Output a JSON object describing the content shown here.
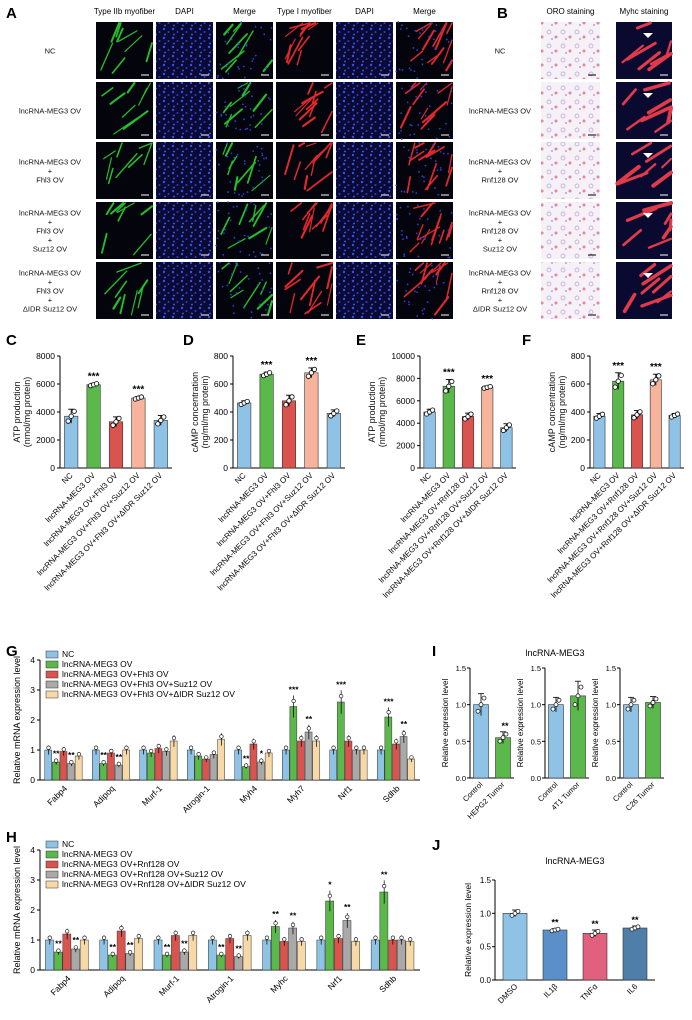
{
  "colors": {
    "nc": "#8fc3e6",
    "meg3": "#5bb84a",
    "fhl3": "#d9534f",
    "suz12": "#f7b39b",
    "didr": "#f7d9a8",
    "rnf_grey": "#a9a9a9",
    "il1b": "#5b8fc9",
    "tnfa": "#e0607e",
    "il6": "#4f7fa8",
    "green_stain": "#22c02a",
    "red_stain": "#e0282d",
    "dapi": "#1f2fb0"
  },
  "panel_letters": [
    "A",
    "B",
    "C",
    "D",
    "E",
    "F",
    "G",
    "H",
    "I",
    "J"
  ],
  "panel_a": {
    "columns": [
      "Type IIb myofiber",
      "DAPI",
      "Merge",
      "Type I myofiber",
      "DAPI",
      "Merge"
    ],
    "rows": [
      "NC",
      "lncRNA-MEG3 OV",
      "lncRNA-MEG3 OV\n+\nFhl3 OV",
      "lncRNA-MEG3 OV\n+\nFhl3 OV\n+\nSuz12 OV",
      "lncRNA-MEG3 OV\n+\nFhl3 OV\n+\nΔIDR Suz12 OV"
    ]
  },
  "panel_b": {
    "columns": [
      "ORO staining",
      "Myhc staining"
    ],
    "rows": [
      "NC",
      "lncRNA-MEG3 OV",
      "lncRNA-MEG3 OV\n+\nRnf128 OV",
      "lncRNA-MEG3 OV\n+\nRnf128 OV\n+\nSuz12 OV",
      "lncRNA-MEG3 OV\n+\nRnf128 OV\n+\nΔIDR Suz12 OV"
    ]
  },
  "chart_data": [
    {
      "panel": "C",
      "type": "bar",
      "ylabel": "ATP production\n(nmol/mg protein)",
      "ylim": [
        0,
        8000
      ],
      "yticks": [
        "0",
        "2000",
        "4000",
        "6000",
        "8000"
      ],
      "categories": [
        "NC",
        "lncRNA-MEG3 OV",
        "lncRNA-MEG3 OV+Fhl3 OV",
        "lncRNA-MEG3 OV+Fhl3 OV+Suz12 OV",
        "lncRNA-MEG3 OV+Fhl3 OV+ΔIDR Suz12 OV"
      ],
      "values": [
        3700,
        5950,
        3300,
        5000,
        3400
      ],
      "errors": [
        500,
        100,
        350,
        100,
        350
      ],
      "sig": [
        "",
        "***",
        "",
        "***",
        ""
      ]
    },
    {
      "panel": "D",
      "type": "bar",
      "ylabel": "cAMP concentration\n(ng/ml/mg protein)",
      "ylim": [
        0,
        800
      ],
      "yticks": [
        "0",
        "200",
        "400",
        "600",
        "800"
      ],
      "categories": [
        "NC",
        "lncRNA-MEG3 OV",
        "lncRNA-MEG3 OV+Fhl3 OV",
        "lncRNA-MEG3 OV+Fhl3 OV+Suz12 OV",
        "lncRNA-MEG3 OV+Fhl3 OV+ΔIDR Suz12 OV"
      ],
      "values": [
        465,
        670,
        480,
        680,
        390
      ],
      "errors": [
        15,
        15,
        40,
        35,
        25
      ],
      "sig": [
        "",
        "***",
        "",
        "***",
        ""
      ]
    },
    {
      "panel": "E",
      "type": "bar",
      "ylabel": "ATP production\n(nmol/mg protein)",
      "ylim": [
        0,
        10000
      ],
      "yticks": [
        "0",
        "2000",
        "4000",
        "6000",
        "8000",
        "10000"
      ],
      "categories": [
        "NC",
        "lncRNA-MEG3 OV",
        "lncRNA-MEG3 OV+Rnf128 OV",
        "lncRNA-MEG3 OV+Rnf128 OV+Suz12 OV",
        "lncRNA-MEG3 OV+Rnf128 OV+ΔIDR Suz12 OV"
      ],
      "values": [
        5000,
        7300,
        4600,
        7200,
        3600
      ],
      "errors": [
        250,
        600,
        300,
        100,
        350
      ],
      "sig": [
        "",
        "***",
        "",
        "***",
        ""
      ]
    },
    {
      "panel": "F",
      "type": "bar",
      "ylabel": "cAMP concentration\n(ng/ml/mg protein)",
      "ylim": [
        0,
        800
      ],
      "yticks": [
        "0",
        "200",
        "400",
        "600",
        "800"
      ],
      "categories": [
        "NC",
        "lncRNA-MEG3 OV",
        "lncRNA-MEG3 OV+Rnf128 OV",
        "lncRNA-MEG3 OV+Rnf128 OV+Suz12 OV",
        "lncRNA-MEG3 OV+Rnf128 OV+ΔIDR Suz12 OV"
      ],
      "values": [
        370,
        620,
        380,
        630,
        375
      ],
      "errors": [
        20,
        60,
        30,
        40,
        15
      ],
      "sig": [
        "",
        "***",
        "",
        "***",
        ""
      ]
    },
    {
      "panel": "G",
      "type": "bar",
      "ylabel": "Relative mRNA expression level",
      "ylim": [
        0,
        4
      ],
      "yticks": [
        "0",
        "1",
        "2",
        "3",
        "4"
      ],
      "categories": [
        "Fabp4",
        "Adipoq",
        "Murf-1",
        "Atrogin-1",
        "Myh4",
        "Myh7",
        "Nrf1",
        "Sdhb"
      ],
      "series": [
        {
          "name": "NC",
          "values": [
            1.0,
            1.0,
            1.0,
            1.0,
            1.0,
            1.0,
            1.0,
            1.0
          ]
        },
        {
          "name": "lncRNA-MEG3 OV",
          "values": [
            0.6,
            0.55,
            0.9,
            0.8,
            0.45,
            2.45,
            2.6,
            2.1
          ]
        },
        {
          "name": "lncRNA-MEG3 OV+Fhl3 OV",
          "values": [
            0.95,
            0.9,
            1.05,
            0.7,
            1.2,
            1.3,
            1.3,
            1.2
          ]
        },
        {
          "name": "lncRNA-MEG3 OV+Fhl3 OV+Suz12 OV",
          "values": [
            0.55,
            0.5,
            0.95,
            0.85,
            0.6,
            1.6,
            1.0,
            1.45
          ]
        },
        {
          "name": "lncRNA-MEG3 OV+Fhl3 OV+ΔIDR Suz12 OV",
          "values": [
            0.8,
            1.0,
            1.3,
            1.35,
            0.9,
            1.3,
            1.0,
            0.7
          ]
        }
      ],
      "sig_labels": [
        {
          "cat": 0,
          "ser": 1,
          "text": "**"
        },
        {
          "cat": 0,
          "ser": 3,
          "text": "**"
        },
        {
          "cat": 1,
          "ser": 1,
          "text": "**"
        },
        {
          "cat": 1,
          "ser": 3,
          "text": "**"
        },
        {
          "cat": 4,
          "ser": 1,
          "text": "**"
        },
        {
          "cat": 4,
          "ser": 3,
          "text": "*"
        },
        {
          "cat": 5,
          "ser": 1,
          "text": "***"
        },
        {
          "cat": 5,
          "ser": 3,
          "text": "**"
        },
        {
          "cat": 6,
          "ser": 1,
          "text": "***"
        },
        {
          "cat": 7,
          "ser": 1,
          "text": "***"
        },
        {
          "cat": 7,
          "ser": 3,
          "text": "**"
        }
      ]
    },
    {
      "panel": "H",
      "type": "bar",
      "ylabel": "Relative mRNA expression level",
      "ylim": [
        0,
        4
      ],
      "yticks": [
        "0",
        "1",
        "2",
        "3",
        "4"
      ],
      "categories": [
        "Fabp4",
        "Adipoq",
        "Murf-1",
        "Atrogin-1",
        "Myhc",
        "Nrf1",
        "Sdhb"
      ],
      "series": [
        {
          "name": "NC",
          "values": [
            1.0,
            1.0,
            1.0,
            1.0,
            1.0,
            1.0,
            1.0
          ]
        },
        {
          "name": "lncRNA-MEG3 OV",
          "values": [
            0.6,
            0.5,
            0.5,
            0.5,
            1.45,
            2.3,
            2.6
          ]
        },
        {
          "name": "lncRNA-MEG3 OV+Rnf128 OV",
          "values": [
            1.2,
            1.3,
            1.15,
            1.05,
            0.95,
            1.05,
            1.0
          ]
        },
        {
          "name": "lncRNA-MEG3 OV+Rnf128 OV+Suz12 OV",
          "values": [
            0.7,
            0.55,
            0.6,
            0.45,
            1.4,
            1.65,
            1.0
          ]
        },
        {
          "name": "lncRNA-MEG3 OV+Rnf128 OV+ΔIDR Suz12 OV",
          "values": [
            1.0,
            1.05,
            1.15,
            1.15,
            0.95,
            0.95,
            0.95
          ]
        }
      ],
      "sig_labels": [
        {
          "cat": 0,
          "ser": 1,
          "text": "**"
        },
        {
          "cat": 0,
          "ser": 3,
          "text": "**"
        },
        {
          "cat": 1,
          "ser": 1,
          "text": "**"
        },
        {
          "cat": 1,
          "ser": 3,
          "text": "**"
        },
        {
          "cat": 2,
          "ser": 1,
          "text": "**"
        },
        {
          "cat": 2,
          "ser": 3,
          "text": "**"
        },
        {
          "cat": 3,
          "ser": 1,
          "text": "**"
        },
        {
          "cat": 3,
          "ser": 3,
          "text": "**"
        },
        {
          "cat": 4,
          "ser": 1,
          "text": "**"
        },
        {
          "cat": 4,
          "ser": 3,
          "text": "**"
        },
        {
          "cat": 5,
          "ser": 1,
          "text": "*"
        },
        {
          "cat": 5,
          "ser": 3,
          "text": "**"
        },
        {
          "cat": 6,
          "ser": 1,
          "text": "**"
        }
      ]
    },
    {
      "panel": "I",
      "type": "bar",
      "title": "lncRNA-MEG3",
      "subplots": [
        {
          "ylabel": "Relative expression level",
          "ylim": [
            0,
            1.5
          ],
          "yticks": [
            "0.0",
            "0.5",
            "1.0",
            "1.5"
          ],
          "categories": [
            "Control",
            "HEPG2 Tumor"
          ],
          "values": [
            1.0,
            0.55
          ],
          "errors": [
            0.15,
            0.08
          ],
          "sig": [
            "",
            "**"
          ]
        },
        {
          "ylabel": "Relative expression level",
          "ylim": [
            0,
            1.5
          ],
          "yticks": [
            "0.0",
            "0.5",
            "1.0",
            "1.5"
          ],
          "categories": [
            "Control",
            "4T1 Tumor"
          ],
          "values": [
            1.0,
            1.12
          ],
          "errors": [
            0.1,
            0.2
          ],
          "sig": [
            "",
            ""
          ]
        },
        {
          "ylabel": "Relative expression level",
          "ylim": [
            0,
            1.5
          ],
          "yticks": [
            "0.0",
            "0.5",
            "1.0",
            "1.5"
          ],
          "categories": [
            "Control",
            "C26 Tumor"
          ],
          "values": [
            1.0,
            1.03
          ],
          "errors": [
            0.1,
            0.08
          ],
          "sig": [
            "",
            ""
          ]
        }
      ]
    },
    {
      "panel": "J",
      "type": "bar",
      "title": "lncRNA-MEG3",
      "ylabel": "Relative expression level",
      "ylim": [
        0,
        1.5
      ],
      "yticks": [
        "0.0",
        "0.5",
        "1.0",
        "1.5"
      ],
      "categories": [
        "DMSO",
        "IL1β",
        "TNFα",
        "IL6"
      ],
      "values": [
        1.0,
        0.75,
        0.7,
        0.78
      ],
      "errors": [
        0.05,
        0.02,
        0.05,
        0.03
      ],
      "sig": [
        "",
        "**",
        "**",
        "**"
      ]
    }
  ]
}
